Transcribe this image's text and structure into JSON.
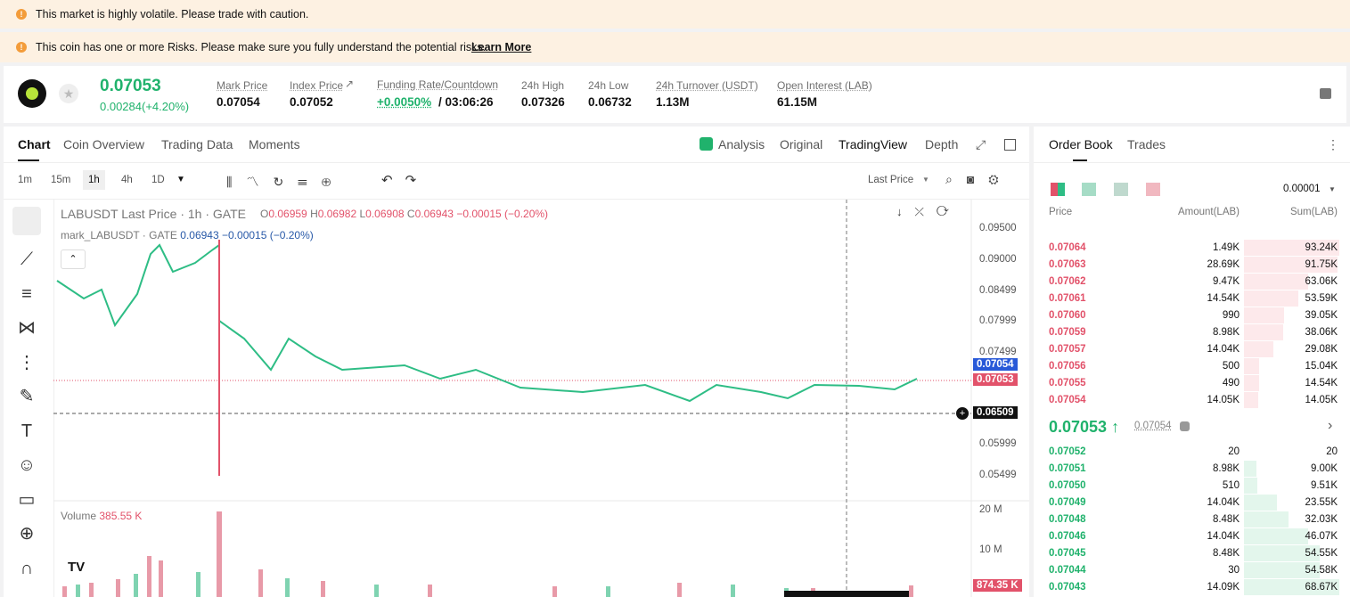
{
  "banners": [
    {
      "text": "This market is highly volatile. Please trade with caution."
    },
    {
      "text": "This coin has one or more Risks. Please make sure you fully understand the potential risks.",
      "link": "Learn More"
    }
  ],
  "ticker": {
    "price": "0.07053",
    "change": "0.00284(+4.20%)",
    "stats": [
      {
        "label": "Mark Price",
        "value": "0.07054"
      },
      {
        "label": "Index Price",
        "value": "0.07052"
      },
      {
        "label": "Funding Rate/Countdown",
        "value": "+0.0050%",
        "extra": "/ 03:06:26"
      },
      {
        "label": "24h High",
        "value": "0.07326"
      },
      {
        "label": "24h Low",
        "value": "0.06732"
      },
      {
        "label": "24h Turnover (USDT)",
        "value": "1.13M"
      },
      {
        "label": "Open Interest (LAB)",
        "value": "61.15M"
      }
    ]
  },
  "chart_tabs": [
    "Chart",
    "Coin Overview",
    "Trading Data",
    "Moments"
  ],
  "view_tabs": [
    "Analysis",
    "Original",
    "TradingView",
    "Depth"
  ],
  "intervals": [
    "1m",
    "15m",
    "1h",
    "4h",
    "1D"
  ],
  "price_source": "Last Price",
  "legend": {
    "symbol": "LABUSDT Last Price · 1h · GATE",
    "ohlc": [
      {
        "key": "O",
        "value": "0.06959"
      },
      {
        "key": "H",
        "value": "0.06982"
      },
      {
        "key": "L",
        "value": "0.06908"
      },
      {
        "key": "C",
        "value": "0.06943"
      }
    ],
    "change": "−0.00015 (−0.20%)"
  },
  "mark_line": {
    "label": "mark_LABUSDT · GATE",
    "value": "0.06943",
    "change": "−0.00015 (−0.20%)"
  },
  "price_axis": [
    "0.09500",
    "0.09000",
    "0.08499",
    "0.07999",
    "0.07499",
    "0.05999",
    "0.05499"
  ],
  "price_tags": {
    "mark": "0.07054",
    "last": "0.07053",
    "cursor": "0.06509"
  },
  "volume": {
    "label": "Volume",
    "value": "385.55 K",
    "axis": [
      "20 M",
      "10 M"
    ],
    "tag": "874.35 K"
  },
  "order_book": {
    "tabs": [
      "Order Book",
      "Trades"
    ],
    "precision": "0.00001",
    "headers": [
      "Price",
      "Amount(LAB)",
      "Sum(LAB)"
    ],
    "asks": [
      {
        "price": "0.07064",
        "amount": "1.49K",
        "sum": {
          "value": 93240,
          "label": "93.24K"
        }
      },
      {
        "price": "0.07063",
        "amount": "28.69K",
        "sum": {
          "value": 91750,
          "label": "91.75K"
        }
      },
      {
        "price": "0.07062",
        "amount": "9.47K",
        "sum": {
          "value": 63060,
          "label": "63.06K"
        }
      },
      {
        "price": "0.07061",
        "amount": "14.54K",
        "sum": {
          "value": 53590,
          "label": "53.59K"
        }
      },
      {
        "price": "0.07060",
        "amount": "990",
        "sum": {
          "value": 39050,
          "label": "39.05K"
        }
      },
      {
        "price": "0.07059",
        "amount": "8.98K",
        "sum": {
          "value": 38060,
          "label": "38.06K"
        }
      },
      {
        "price": "0.07057",
        "amount": "14.04K",
        "sum": {
          "value": 29080,
          "label": "29.08K"
        }
      },
      {
        "price": "0.07056",
        "amount": "500",
        "sum": {
          "value": 15040,
          "label": "15.04K"
        }
      },
      {
        "price": "0.07055",
        "amount": "490",
        "sum": {
          "value": 14540,
          "label": "14.54K"
        }
      },
      {
        "price": "0.07054",
        "amount": "14.05K",
        "sum": {
          "value": 14050,
          "label": "14.05K"
        }
      }
    ],
    "mid": {
      "price": "0.07053",
      "mark": "0.07054"
    },
    "bids": [
      {
        "price": "0.07052",
        "amount": "20",
        "sum": 20
      },
      {
        "price": "0.07051",
        "amount": "8.98K",
        "sum": {
          "value": 9000,
          "label": "9.00K"
        }
      },
      {
        "price": "0.07050",
        "amount": "510",
        "sum": {
          "value": 9510,
          "label": "9.51K"
        }
      },
      {
        "price": "0.07049",
        "amount": "14.04K",
        "sum": {
          "value": 23550,
          "label": "23.55K"
        }
      },
      {
        "price": "0.07048",
        "amount": "8.48K",
        "sum": {
          "value": 32030,
          "label": "32.03K"
        }
      },
      {
        "price": "0.07046",
        "amount": "14.04K",
        "sum": {
          "value": 46070,
          "label": "46.07K"
        }
      },
      {
        "price": "0.07045",
        "amount": "8.48K",
        "sum": {
          "value": 54550,
          "label": "54.55K"
        }
      },
      {
        "price": "0.07044",
        "amount": "30",
        "sum": {
          "value": 54580,
          "label": "54.58K"
        }
      },
      {
        "price": "0.07043",
        "amount": "14.09K",
        "sum": {
          "value": 68670,
          "label": "68.67K"
        }
      }
    ]
  }
}
